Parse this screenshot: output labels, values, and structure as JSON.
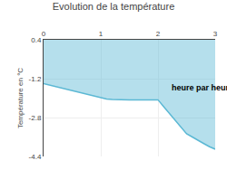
{
  "chart_data": {
    "type": "area",
    "title": "Evolution de la température",
    "ylabel": "Température en °C",
    "color": "#5bb8d4",
    "x": [
      0,
      0.1,
      0.2,
      0.3,
      0.4,
      0.5,
      0.6,
      0.7,
      0.8,
      0.9,
      1.0,
      1.1,
      1.2,
      1.3,
      1.4,
      1.5,
      1.6,
      1.7,
      1.8,
      1.9,
      2.0,
      2.1,
      2.2,
      2.3,
      2.4,
      2.5,
      2.6,
      2.7,
      2.8,
      2.9,
      3.0
    ],
    "values": [
      -1.4,
      -1.46,
      -1.52,
      -1.58,
      -1.64,
      -1.7,
      -1.76,
      -1.82,
      -1.88,
      -1.94,
      -2.0,
      -2.04,
      -2.06,
      -2.07,
      -2.07,
      -2.07,
      -2.07,
      -2.07,
      -2.07,
      -2.07,
      -2.07,
      -2.35,
      -2.63,
      -2.91,
      -3.19,
      -3.47,
      -3.6,
      -3.75,
      -3.87,
      -4.0,
      -4.1
    ],
    "xlim": [
      0,
      3
    ],
    "xticks": [
      0,
      1,
      2,
      3
    ],
    "ylim": [
      -4.4,
      0.4
    ],
    "yticks": [
      0.4,
      -1.2,
      -2.8,
      -4.4
    ],
    "grid": true,
    "annotations": [
      {
        "text": "heure par heure",
        "x": 2.2,
        "y": -1.3
      }
    ]
  }
}
